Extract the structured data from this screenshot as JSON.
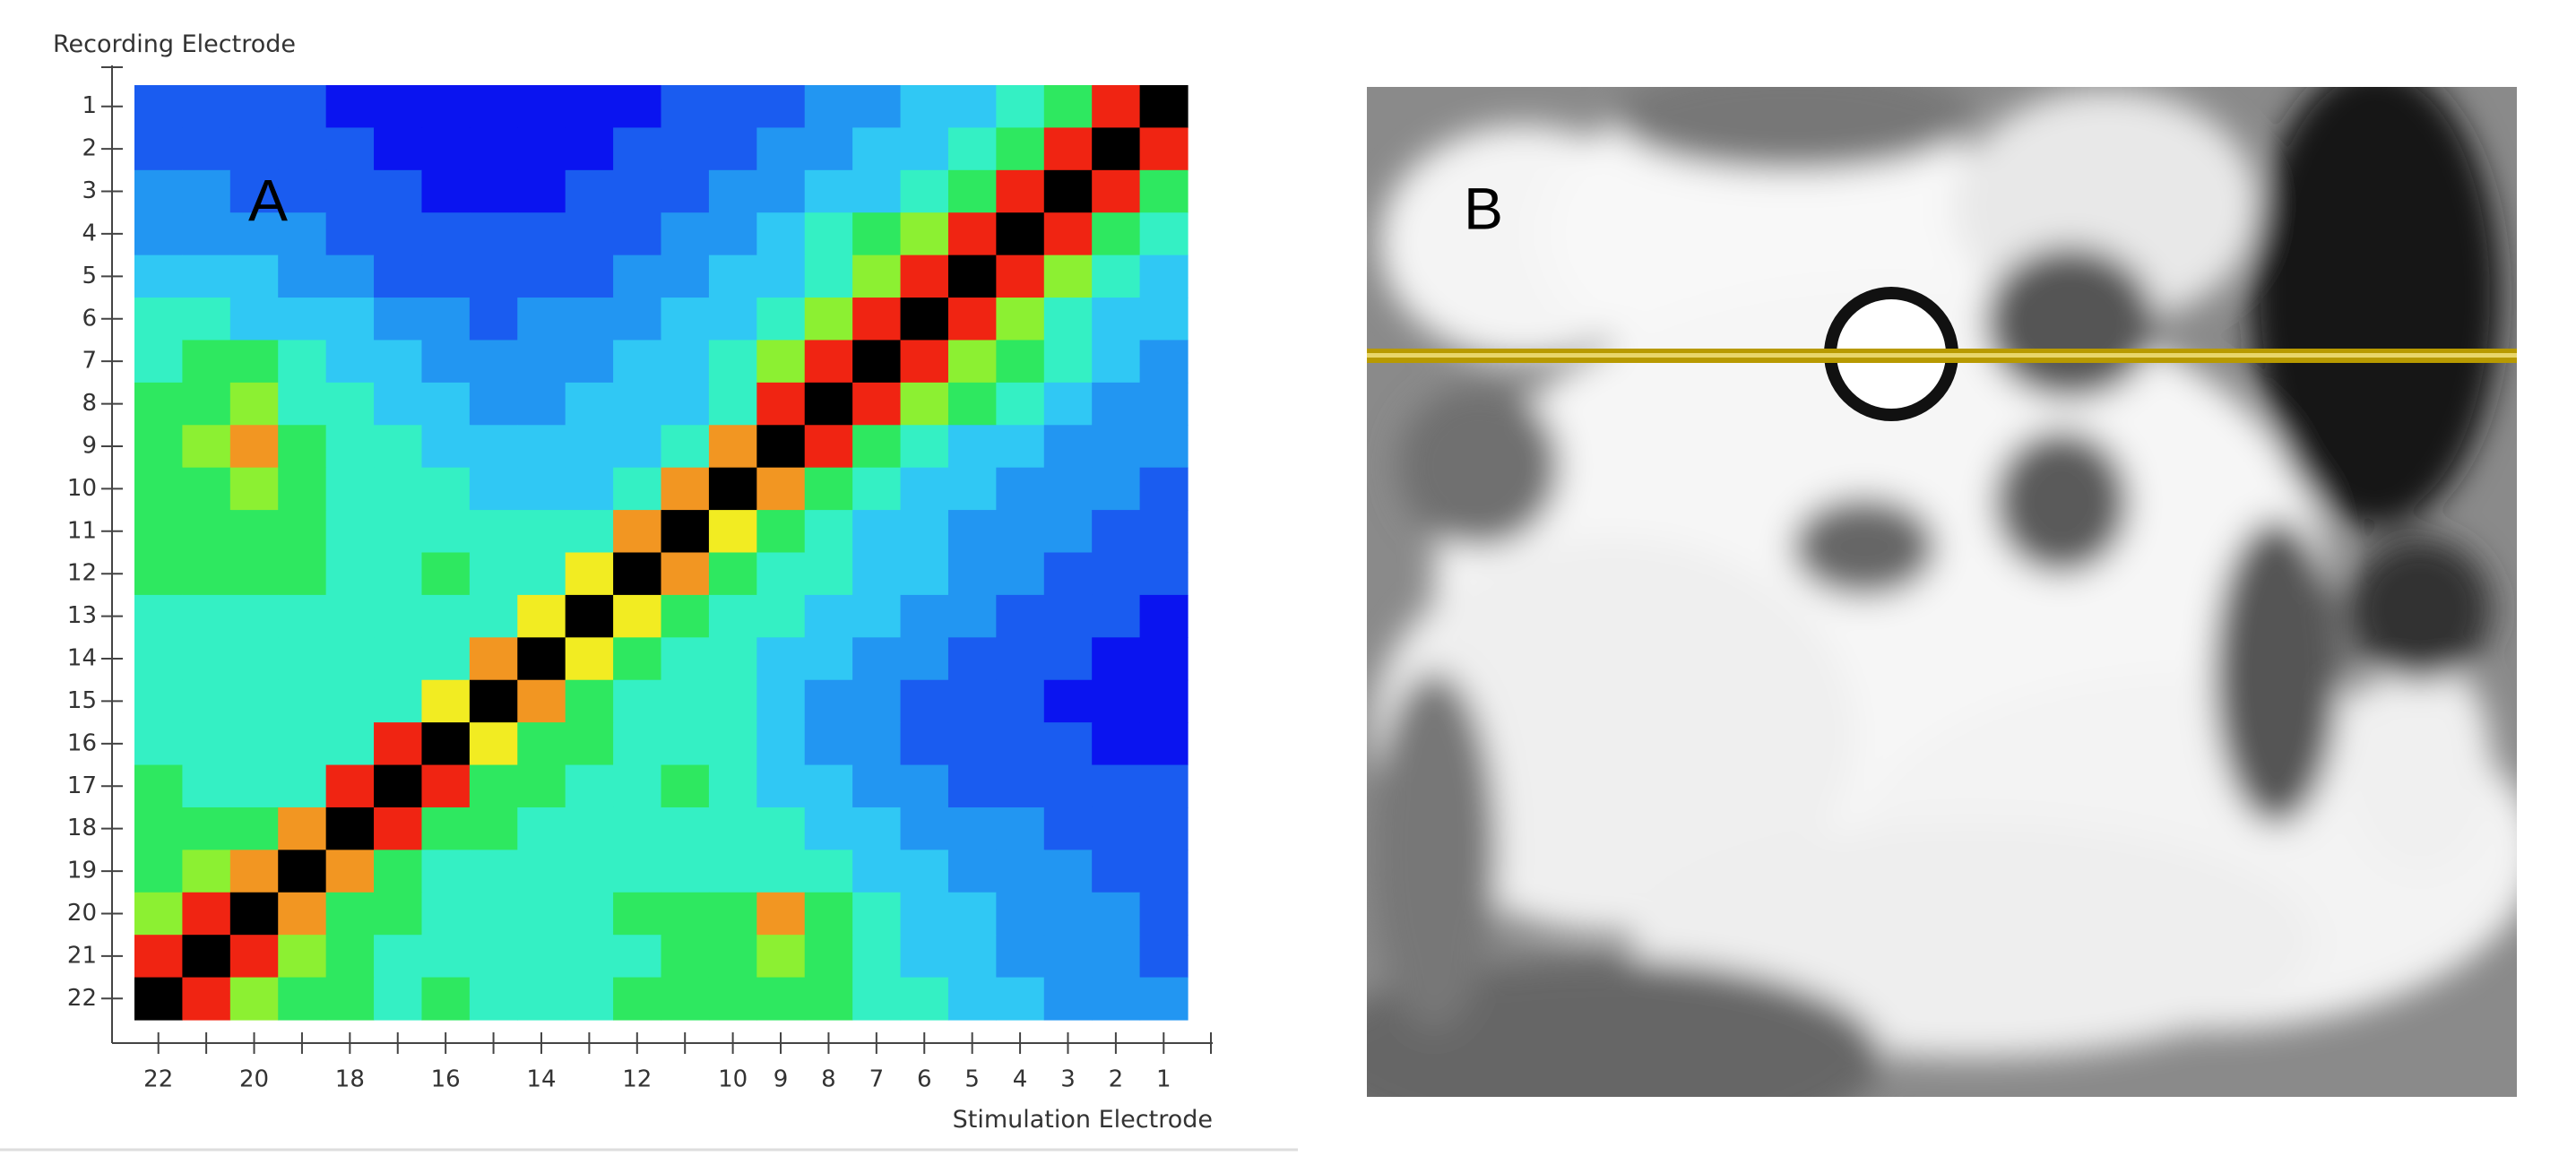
{
  "chart_data": {
    "type": "heatmap",
    "y_label": "Recording Electrode",
    "x_label": "Stimulation Electrode",
    "annotation": "A",
    "x": [
      "22",
      null,
      "20",
      null,
      "18",
      null,
      "16",
      null,
      "14",
      null,
      "12",
      null,
      "10",
      "9",
      "8",
      "7",
      "6",
      "5",
      "4",
      "3",
      "2",
      "1"
    ],
    "y": [
      "1",
      "2",
      "3",
      "4",
      "5",
      "6",
      "7",
      "8",
      "9",
      "10",
      "11",
      "12",
      "13",
      "14",
      "15",
      "16",
      "17",
      "18",
      "19",
      "20",
      "21",
      "22"
    ],
    "colors": [
      "#0a14f0",
      "#1a5cf0",
      "#2296f2",
      "#30c8f4",
      "#34f0c4",
      "#2ee860",
      "#8cf032",
      "#f2ec22",
      "#f29622",
      "#f02412",
      "#000000"
    ],
    "values": [
      [
        1,
        1,
        1,
        1,
        0,
        0,
        0,
        0,
        0,
        0,
        0,
        1,
        1,
        1,
        2,
        2,
        3,
        3,
        4,
        5,
        9,
        10
      ],
      [
        1,
        1,
        1,
        1,
        1,
        0,
        0,
        0,
        0,
        0,
        1,
        1,
        1,
        2,
        2,
        3,
        3,
        4,
        5,
        9,
        10,
        9
      ],
      [
        2,
        2,
        1,
        1,
        1,
        1,
        0,
        0,
        0,
        1,
        1,
        1,
        2,
        2,
        3,
        3,
        4,
        5,
        9,
        10,
        9,
        5
      ],
      [
        2,
        2,
        2,
        2,
        1,
        1,
        1,
        1,
        1,
        1,
        1,
        2,
        2,
        3,
        4,
        5,
        6,
        9,
        10,
        9,
        5,
        4
      ],
      [
        3,
        3,
        3,
        2,
        2,
        1,
        1,
        1,
        1,
        1,
        2,
        2,
        3,
        3,
        4,
        6,
        9,
        10,
        9,
        6,
        4,
        3
      ],
      [
        4,
        4,
        3,
        3,
        3,
        2,
        2,
        1,
        2,
        2,
        2,
        3,
        3,
        4,
        6,
        9,
        10,
        9,
        6,
        4,
        3,
        3
      ],
      [
        4,
        5,
        5,
        4,
        3,
        3,
        2,
        2,
        2,
        2,
        3,
        3,
        4,
        6,
        9,
        10,
        9,
        6,
        5,
        4,
        3,
        2
      ],
      [
        5,
        5,
        6,
        4,
        4,
        3,
        3,
        2,
        2,
        3,
        3,
        3,
        4,
        9,
        10,
        9,
        6,
        5,
        4,
        3,
        2,
        2
      ],
      [
        5,
        6,
        8,
        5,
        4,
        4,
        3,
        3,
        3,
        3,
        3,
        4,
        8,
        10,
        9,
        5,
        4,
        3,
        3,
        2,
        2,
        2
      ],
      [
        5,
        5,
        6,
        5,
        4,
        4,
        4,
        3,
        3,
        3,
        4,
        8,
        10,
        8,
        5,
        4,
        3,
        3,
        2,
        2,
        2,
        1
      ],
      [
        5,
        5,
        5,
        5,
        4,
        4,
        4,
        4,
        4,
        4,
        8,
        10,
        7,
        5,
        4,
        3,
        3,
        2,
        2,
        2,
        1,
        1
      ],
      [
        5,
        5,
        5,
        5,
        4,
        4,
        5,
        4,
        4,
        7,
        10,
        8,
        5,
        4,
        4,
        3,
        3,
        2,
        2,
        1,
        1,
        1
      ],
      [
        4,
        4,
        4,
        4,
        4,
        4,
        4,
        4,
        7,
        10,
        7,
        5,
        4,
        4,
        3,
        3,
        2,
        2,
        1,
        1,
        1,
        0
      ],
      [
        4,
        4,
        4,
        4,
        4,
        4,
        4,
        8,
        10,
        7,
        5,
        4,
        4,
        3,
        3,
        2,
        2,
        1,
        1,
        1,
        0,
        0
      ],
      [
        4,
        4,
        4,
        4,
        4,
        4,
        7,
        10,
        8,
        5,
        4,
        4,
        4,
        3,
        2,
        2,
        1,
        1,
        1,
        0,
        0,
        0
      ],
      [
        4,
        4,
        4,
        4,
        4,
        9,
        10,
        7,
        5,
        5,
        4,
        4,
        4,
        3,
        2,
        2,
        1,
        1,
        1,
        1,
        0,
        0
      ],
      [
        5,
        4,
        4,
        4,
        9,
        10,
        9,
        5,
        5,
        4,
        4,
        5,
        4,
        3,
        3,
        2,
        2,
        1,
        1,
        1,
        1,
        1
      ],
      [
        5,
        5,
        5,
        8,
        10,
        9,
        5,
        5,
        4,
        4,
        4,
        4,
        4,
        4,
        3,
        3,
        2,
        2,
        2,
        1,
        1,
        1
      ],
      [
        5,
        6,
        8,
        10,
        8,
        5,
        4,
        4,
        4,
        4,
        4,
        4,
        4,
        4,
        4,
        3,
        3,
        2,
        2,
        2,
        1,
        1
      ],
      [
        6,
        9,
        10,
        8,
        5,
        5,
        4,
        4,
        4,
        4,
        5,
        5,
        5,
        8,
        5,
        4,
        3,
        3,
        2,
        2,
        2,
        1
      ],
      [
        9,
        10,
        9,
        6,
        5,
        4,
        4,
        4,
        4,
        4,
        4,
        5,
        5,
        6,
        5,
        4,
        3,
        3,
        2,
        2,
        2,
        1
      ],
      [
        10,
        9,
        6,
        5,
        5,
        4,
        5,
        4,
        4,
        4,
        5,
        5,
        5,
        5,
        5,
        4,
        4,
        3,
        3,
        2,
        2,
        2
      ]
    ]
  },
  "image_label": "B"
}
